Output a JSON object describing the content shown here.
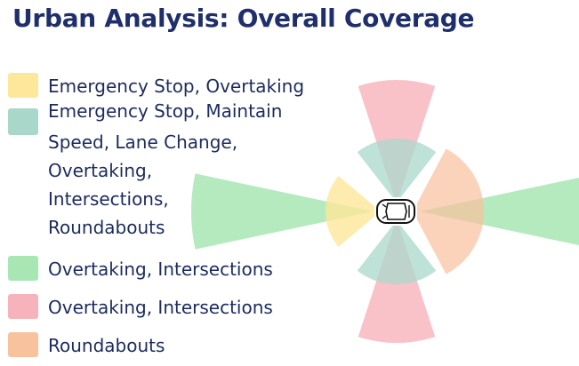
{
  "title": "Urban Analysis: Overall Coverage",
  "legend": [
    {
      "label": "Emergency Stop, Overtaking",
      "color": "#fce79a"
    },
    {
      "label": "Emergency Stop, Maintain",
      "color": "#a9d8cb"
    },
    {
      "label": "Speed, Lane Change,"
    },
    {
      "label": "Overtaking,"
    },
    {
      "label": "Intersections,"
    },
    {
      "label": "Roundabouts"
    },
    {
      "label": "Overtaking, Intersections",
      "color": "#a8e6b4"
    },
    {
      "label": "Overtaking, Intersections",
      "color": "#f7b3bc"
    },
    {
      "label": "Roundabouts",
      "color": "#f8c29f"
    }
  ],
  "vehicle_icon": "car-top-view-icon"
}
